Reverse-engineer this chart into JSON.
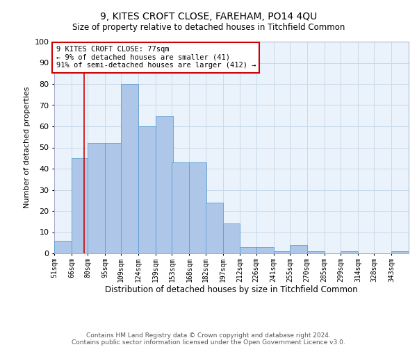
{
  "title": "9, KITES CROFT CLOSE, FAREHAM, PO14 4QU",
  "subtitle": "Size of property relative to detached houses in Titchfield Common",
  "xlabel": "Distribution of detached houses by size in Titchfield Common",
  "ylabel": "Number of detached properties",
  "categories": [
    "51sqm",
    "66sqm",
    "80sqm",
    "95sqm",
    "109sqm",
    "124sqm",
    "139sqm",
    "153sqm",
    "168sqm",
    "182sqm",
    "197sqm",
    "212sqm",
    "226sqm",
    "241sqm",
    "255sqm",
    "270sqm",
    "285sqm",
    "299sqm",
    "314sqm",
    "328sqm",
    "343sqm"
  ],
  "values": [
    6,
    45,
    52,
    52,
    80,
    60,
    65,
    43,
    43,
    24,
    14,
    3,
    3,
    1,
    4,
    1,
    0,
    1,
    0,
    0,
    1
  ],
  "bar_color": "#aec6e8",
  "bar_edge_color": "#5a9fd4",
  "grid_color": "#c8daea",
  "background_color": "#ffffff",
  "plot_bg_color": "#eaf2fb",
  "annotation_text": "9 KITES CROFT CLOSE: 77sqm\n← 9% of detached houses are smaller (41)\n91% of semi-detached houses are larger (412) →",
  "annotation_box_color": "#ffffff",
  "annotation_box_edge": "#cc0000",
  "property_line_x": 77,
  "property_line_color": "#cc0000",
  "ylim": [
    0,
    100
  ],
  "bin_width": 15,
  "footer_line1": "Contains HM Land Registry data © Crown copyright and database right 2024.",
  "footer_line2": "Contains public sector information licensed under the Open Government Licence v3.0."
}
